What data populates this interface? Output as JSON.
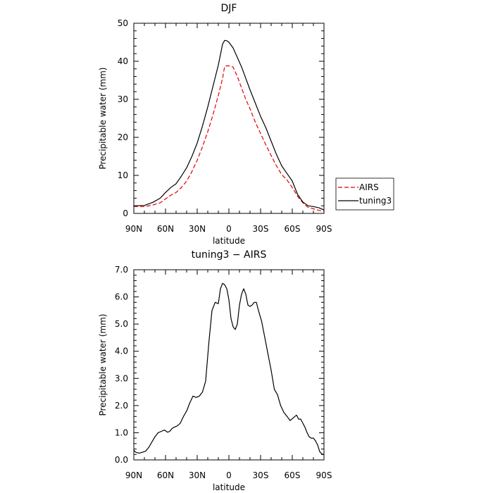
{
  "chart_data": [
    {
      "type": "line",
      "title": "DJF",
      "xlabel": "latitude",
      "ylabel": "Precipitable water (mm)",
      "xlim": [
        90,
        -90
      ],
      "ylim": [
        0,
        50
      ],
      "x_ticks": [
        90,
        60,
        30,
        0,
        -30,
        -60,
        -90
      ],
      "x_tick_labels": [
        "90N",
        "60N",
        "30N",
        "0",
        "30S",
        "60S",
        "90S"
      ],
      "y_ticks": [
        0,
        10,
        20,
        30,
        40,
        50
      ],
      "y_tick_labels": [
        "0",
        "10",
        "20",
        "30",
        "40",
        "50"
      ],
      "legend_position": "right-outside",
      "series": [
        {
          "name": "AIRS",
          "color": "#e00000",
          "dash": "dashed",
          "x": [
            90,
            80,
            72,
            65,
            60,
            55,
            50,
            45,
            40,
            35,
            30,
            25,
            20,
            15,
            10,
            6,
            4,
            2,
            0,
            -4,
            -8,
            -12,
            -16,
            -20,
            -25,
            -30,
            -35,
            -40,
            -45,
            -50,
            -55,
            -60,
            -65,
            -70,
            -75,
            -80,
            -85,
            -90
          ],
          "y": [
            1.8,
            1.8,
            2.2,
            2.8,
            3.8,
            4.8,
            5.5,
            6.8,
            8.5,
            11.0,
            14.0,
            17.5,
            21.5,
            26.0,
            31.0,
            35.5,
            38.7,
            38.8,
            38.8,
            38.5,
            36.0,
            33.0,
            30.0,
            27.5,
            24.0,
            21.0,
            18.0,
            15.2,
            12.5,
            10.2,
            8.8,
            6.8,
            4.5,
            2.8,
            1.6,
            1.2,
            0.8,
            0.6
          ]
        },
        {
          "name": "tuning3",
          "color": "#000000",
          "dash": "solid",
          "x": [
            90,
            80,
            72,
            65,
            60,
            55,
            50,
            45,
            40,
            35,
            30,
            25,
            20,
            15,
            10,
            6,
            4,
            2,
            0,
            -4,
            -8,
            -12,
            -16,
            -20,
            -25,
            -30,
            -35,
            -40,
            -45,
            -50,
            -55,
            -60,
            -65,
            -70,
            -75,
            -80,
            -85,
            -90
          ],
          "y": [
            2.0,
            2.1,
            2.9,
            4.0,
            5.5,
            6.8,
            7.8,
            9.8,
            12.0,
            15.0,
            18.5,
            23.0,
            28.0,
            33.5,
            39.0,
            44.5,
            45.5,
            45.4,
            45.0,
            43.5,
            41.0,
            38.5,
            35.5,
            32.5,
            29.0,
            25.5,
            22.5,
            19.0,
            15.5,
            12.5,
            10.5,
            8.5,
            5.0,
            3.0,
            2.0,
            1.8,
            1.5,
            0.9
          ]
        }
      ]
    },
    {
      "type": "line",
      "title": "tuning3 − AIRS",
      "xlabel": "latitude",
      "ylabel": "Precipitable water (mm)",
      "xlim": [
        90,
        -90
      ],
      "ylim": [
        0,
        7
      ],
      "x_ticks": [
        90,
        60,
        30,
        0,
        -30,
        -60,
        -90
      ],
      "x_tick_labels": [
        "90N",
        "60N",
        "30N",
        "0",
        "30S",
        "60S",
        "90S"
      ],
      "y_ticks": [
        0,
        1,
        2,
        3,
        4,
        5,
        6,
        7
      ],
      "y_tick_labels": [
        "0.0",
        "1.0",
        "2.0",
        "3.0",
        "4.0",
        "5.0",
        "6.0",
        "7.0"
      ],
      "series": [
        {
          "color": "#000000",
          "dash": "solid",
          "x": [
            90,
            88,
            85,
            82,
            79,
            76,
            73,
            70,
            67,
            64,
            61,
            58,
            56,
            54,
            52,
            49,
            46,
            43,
            40,
            37,
            34,
            31,
            28,
            25,
            22,
            19,
            16,
            13,
            10,
            8,
            6,
            4,
            2,
            0,
            -2,
            -4,
            -6,
            -8,
            -10,
            -12,
            -14,
            -16,
            -18,
            -20,
            -22,
            -24,
            -26,
            -28,
            -31,
            -34,
            -37,
            -40,
            -43,
            -46,
            -49,
            -52,
            -55,
            -58,
            -61,
            -64,
            -66,
            -68,
            -70,
            -72,
            -74,
            -76,
            -78,
            -80,
            -82,
            -84,
            -86,
            -88,
            -90
          ],
          "y": [
            0.35,
            0.28,
            0.25,
            0.28,
            0.32,
            0.45,
            0.65,
            0.85,
            1.0,
            1.05,
            1.1,
            1.02,
            1.05,
            1.15,
            1.2,
            1.25,
            1.35,
            1.6,
            1.8,
            2.1,
            2.35,
            2.3,
            2.35,
            2.5,
            2.9,
            4.3,
            5.5,
            5.8,
            5.75,
            6.3,
            6.5,
            6.45,
            6.3,
            5.9,
            5.2,
            4.9,
            4.8,
            5.0,
            5.7,
            6.1,
            6.3,
            6.1,
            5.7,
            5.65,
            5.7,
            5.8,
            5.8,
            5.5,
            5.1,
            4.5,
            3.9,
            3.3,
            2.6,
            2.4,
            2.0,
            1.75,
            1.6,
            1.45,
            1.55,
            1.65,
            1.5,
            1.5,
            1.35,
            1.2,
            1.0,
            0.85,
            0.8,
            0.8,
            0.7,
            0.55,
            0.3,
            0.22,
            0.2
          ]
        }
      ]
    }
  ]
}
